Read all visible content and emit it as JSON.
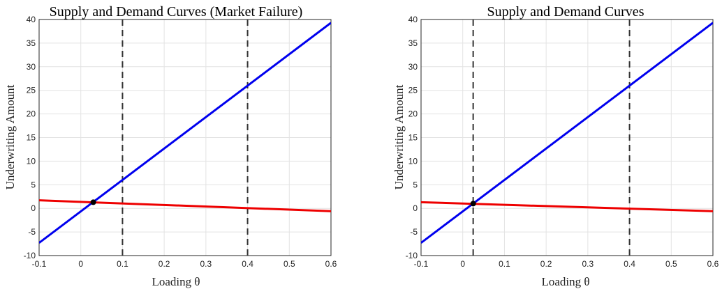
{
  "chart_data": [
    {
      "type": "line",
      "title": "Supply and Demand Curves (Market Failure)",
      "xlabel": "Loading θ",
      "ylabel": "Underwriting Amount",
      "xlim": [
        -0.1,
        0.6
      ],
      "ylim": [
        -10,
        40
      ],
      "xticks": [
        "-0.1",
        "0",
        "0.1",
        "0.2",
        "0.3",
        "0.4",
        "0.5",
        "0.6"
      ],
      "yticks": [
        "-10",
        "-5",
        "0",
        "5",
        "10",
        "15",
        "20",
        "25",
        "30",
        "35",
        "40"
      ],
      "grid": true,
      "series": [
        {
          "x": [
            -0.1,
            0.6
          ],
          "y": [
            -7.3,
            39.3
          ],
          "color": "#0000ee"
        },
        {
          "x": [
            -0.1,
            0.6
          ],
          "y": [
            1.7,
            -0.6
          ],
          "color": "#ee0000"
        }
      ],
      "vlines": [
        0.1,
        0.4
      ],
      "points": [
        {
          "x": 0.03,
          "y": 1.3
        }
      ]
    },
    {
      "type": "line",
      "title": "Supply and Demand Curves",
      "xlabel": "Loading θ",
      "ylabel": "Underwriting Amount",
      "xlim": [
        -0.1,
        0.6
      ],
      "ylim": [
        -10,
        40
      ],
      "xticks": [
        "-0.1",
        "0",
        "0.1",
        "0.2",
        "0.3",
        "0.4",
        "0.5",
        "0.6"
      ],
      "yticks": [
        "-10",
        "-5",
        "0",
        "5",
        "10",
        "15",
        "20",
        "25",
        "30",
        "35",
        "40"
      ],
      "grid": true,
      "series": [
        {
          "x": [
            -0.1,
            0.6
          ],
          "y": [
            -7.3,
            39.3
          ],
          "color": "#0000ee"
        },
        {
          "x": [
            -0.1,
            0.6
          ],
          "y": [
            1.3,
            -0.6
          ],
          "color": "#ee0000"
        }
      ],
      "vlines": [
        0.025,
        0.4
      ],
      "points": [
        {
          "x": 0.025,
          "y": 1.0
        }
      ]
    }
  ]
}
